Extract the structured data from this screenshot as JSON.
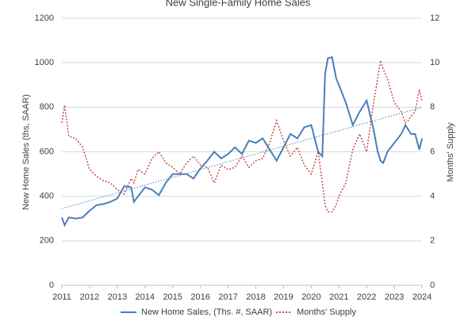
{
  "chart_data": {
    "type": "line",
    "title": "New Single-Family Home Sales",
    "y_label": "New Home Sales (ths, SAAR)",
    "y2_label": "Months' Supply",
    "x": [
      2011.0,
      2011.1,
      2011.25,
      2011.5,
      2011.75,
      2012.0,
      2012.25,
      2012.5,
      2012.75,
      2013.0,
      2013.25,
      2013.5,
      2013.6,
      2013.75,
      2014.0,
      2014.25,
      2014.5,
      2014.75,
      2015.0,
      2015.25,
      2015.5,
      2015.75,
      2016.0,
      2016.25,
      2016.5,
      2016.75,
      2017.0,
      2017.25,
      2017.5,
      2017.75,
      2018.0,
      2018.25,
      2018.5,
      2018.75,
      2019.0,
      2019.25,
      2019.5,
      2019.75,
      2020.0,
      2020.25,
      2020.4,
      2020.5,
      2020.6,
      2020.75,
      2020.9,
      2021.0,
      2021.25,
      2021.5,
      2021.75,
      2022.0,
      2022.25,
      2022.4,
      2022.5,
      2022.6,
      2022.75,
      2023.0,
      2023.25,
      2023.4,
      2023.5,
      2023.6,
      2023.75,
      2023.9,
      2024.0
    ],
    "series": [
      {
        "name": "New Home Sales, (Ths. #, SAAR)",
        "color": "#4a7ebb",
        "dash": "solid",
        "values": [
          305,
          270,
          305,
          300,
          305,
          335,
          360,
          365,
          375,
          390,
          445,
          440,
          375,
          400,
          440,
          430,
          405,
          460,
          500,
          500,
          500,
          480,
          525,
          560,
          600,
          570,
          590,
          620,
          590,
          650,
          640,
          660,
          610,
          560,
          620,
          680,
          660,
          710,
          720,
          600,
          580,
          950,
          1020,
          1025,
          930,
          900,
          820,
          720,
          780,
          830,
          700,
          600,
          560,
          550,
          600,
          640,
          680,
          720,
          700,
          680,
          680,
          610,
          660
        ]
      },
      {
        "name": "Months' Supply",
        "color": "#c0504d",
        "dash": "dotted",
        "axis": "y2",
        "values": [
          7.3,
          8.1,
          6.7,
          6.6,
          6.2,
          5.2,
          4.9,
          4.7,
          4.6,
          4.3,
          4.1,
          4.8,
          4.6,
          5.2,
          5.0,
          5.7,
          6.0,
          5.5,
          5.3,
          5.0,
          5.5,
          5.8,
          5.4,
          5.3,
          4.6,
          5.4,
          5.2,
          5.3,
          5.8,
          5.3,
          5.6,
          5.7,
          6.4,
          7.4,
          6.5,
          5.8,
          6.2,
          5.4,
          5.0,
          6.0,
          4.6,
          3.6,
          3.3,
          3.3,
          3.6,
          4.0,
          4.6,
          6.1,
          6.8,
          6.0,
          8.2,
          9.3,
          10.1,
          9.7,
          9.3,
          8.2,
          7.8,
          7.3,
          7.4,
          7.6,
          7.8,
          8.8,
          8.3
        ]
      }
    ],
    "trendline": {
      "x": [
        2011,
        2024
      ],
      "values": [
        345,
        800
      ],
      "color": "#4a7ebb"
    },
    "xlim": [
      2011,
      2024
    ],
    "xticks": [
      2011,
      2012,
      2013,
      2014,
      2015,
      2016,
      2017,
      2018,
      2019,
      2020,
      2021,
      2022,
      2023,
      2024
    ],
    "ylim": [
      0,
      1200
    ],
    "yticks": [
      0,
      200,
      400,
      600,
      800,
      1000,
      1200
    ],
    "y2lim": [
      0,
      12
    ],
    "y2ticks": [
      0,
      2,
      4,
      6,
      8,
      10,
      12
    ],
    "grid": true,
    "legend": "bottom"
  }
}
